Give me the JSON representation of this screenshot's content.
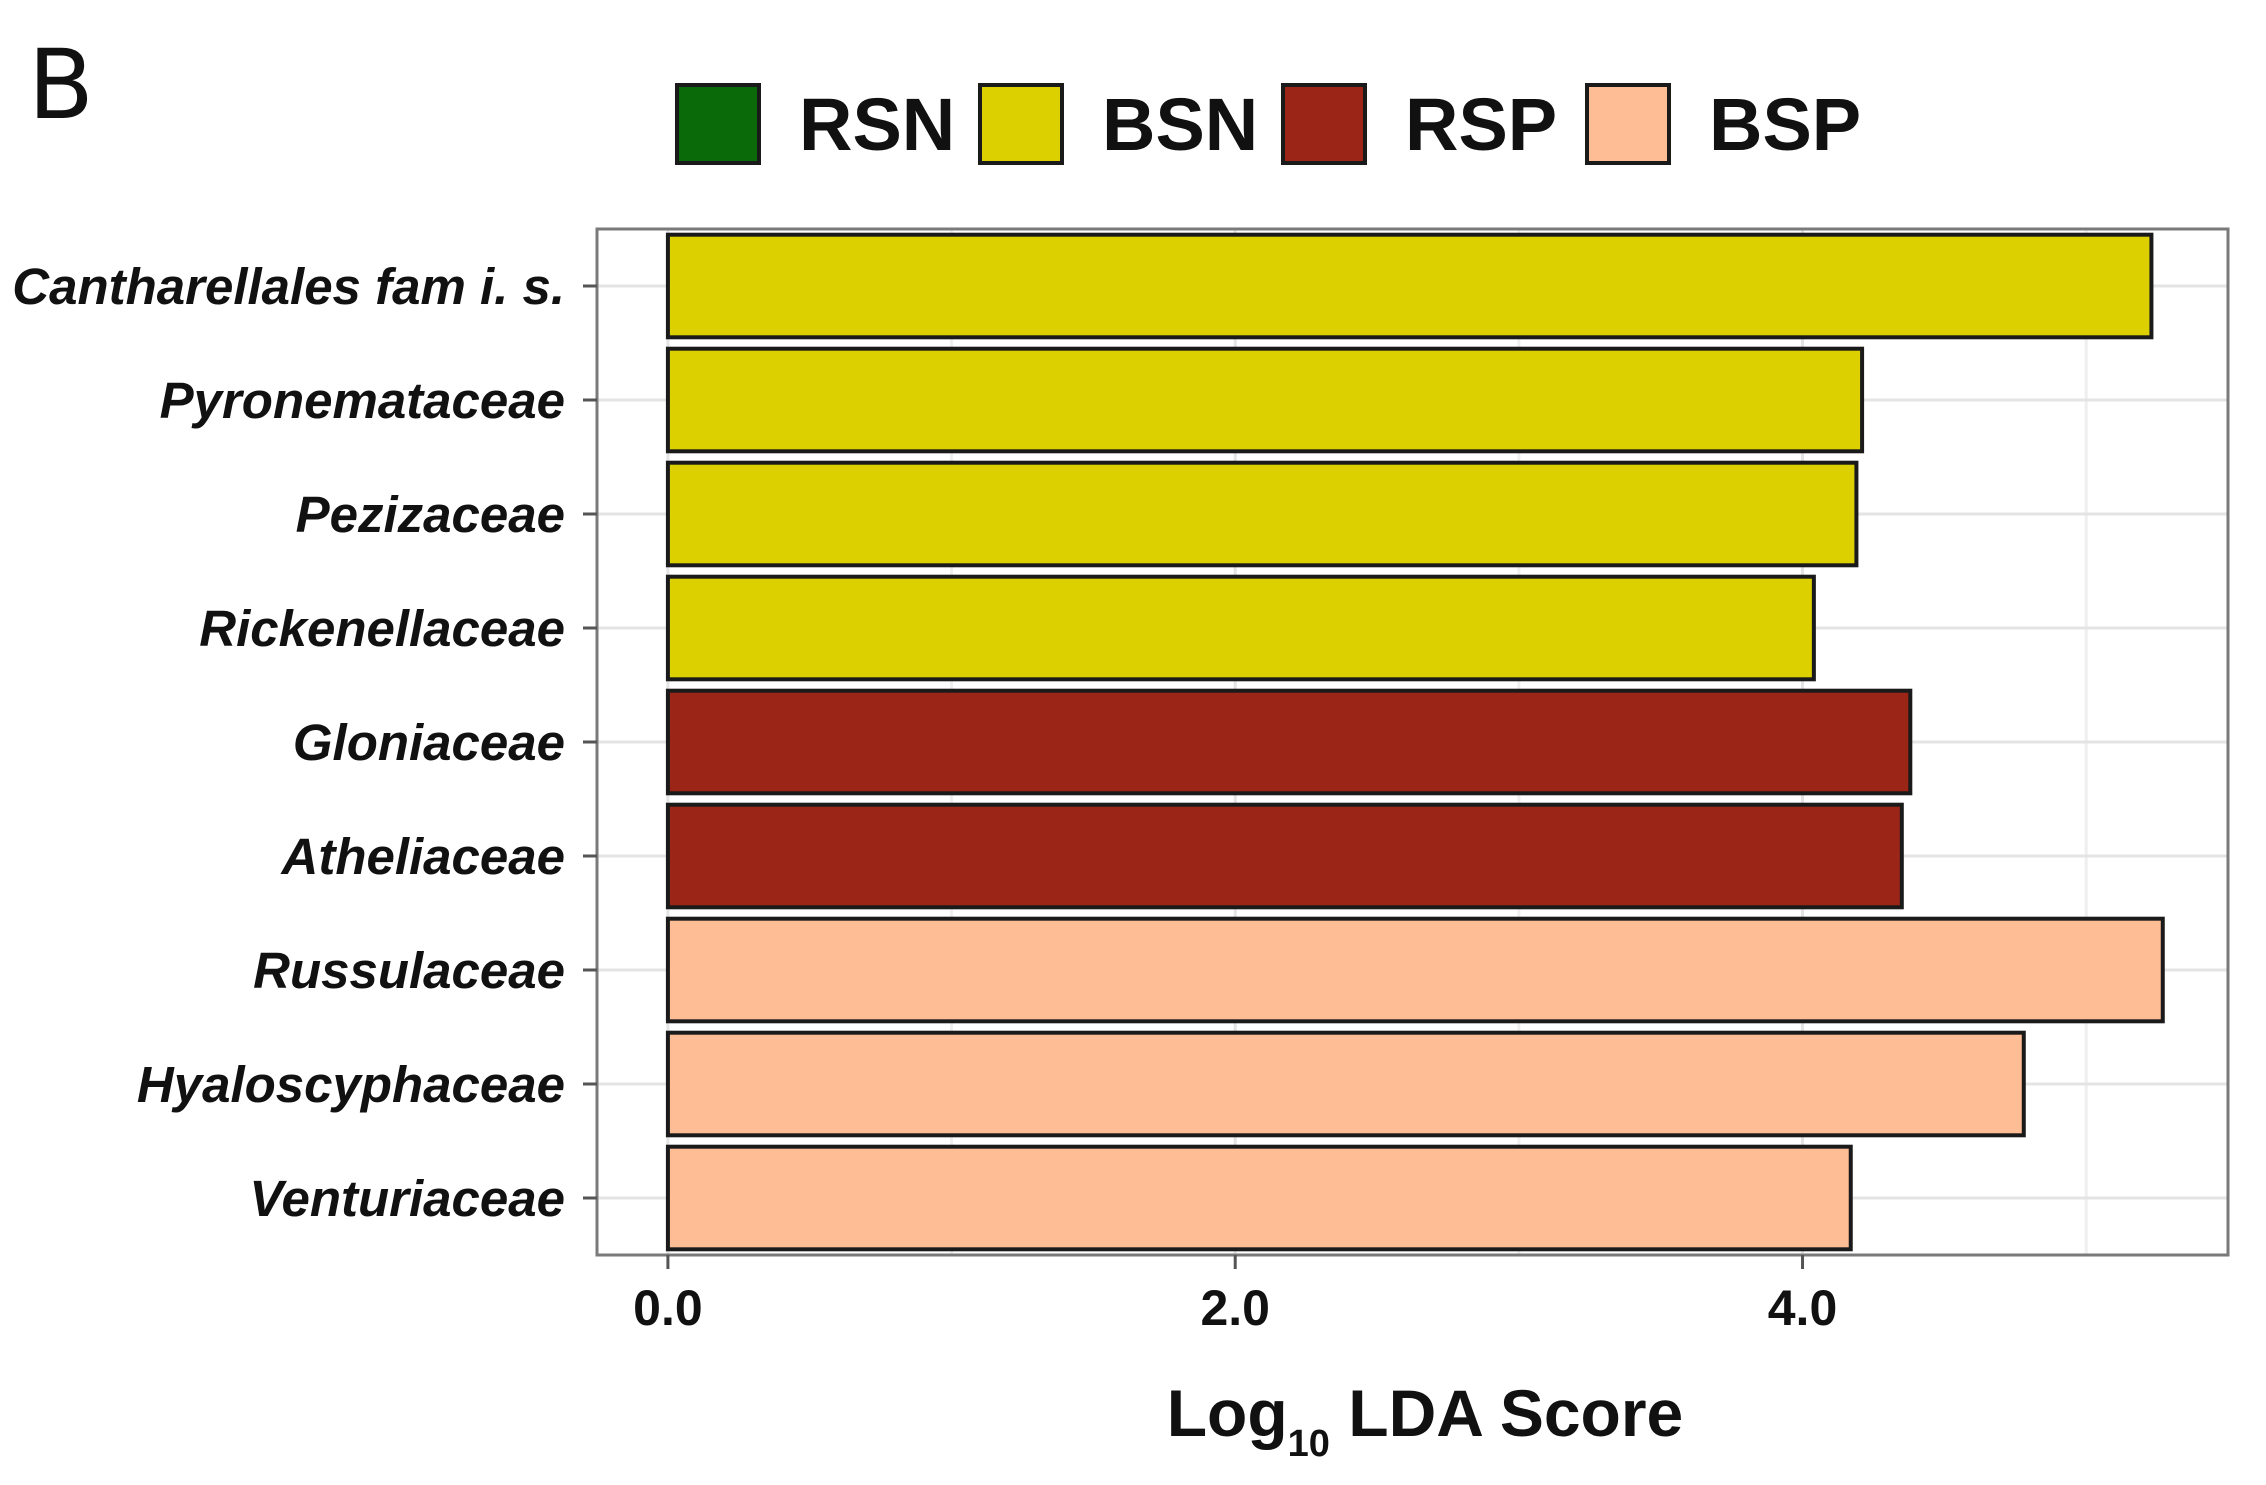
{
  "panel_label": "B",
  "chart_data": {
    "type": "bar",
    "orientation": "horizontal",
    "title": "",
    "xlabel": "Log10 LDA Score",
    "xlabel_main": "Log",
    "xlabel_subscript": "10",
    "xlabel_rest": " LDA Score",
    "ylabel": "",
    "xlim": [
      -0.25,
      5.5
    ],
    "xticks": [
      0.0,
      2.0,
      4.0
    ],
    "xtick_labels": [
      "0.0",
      "2.0",
      "4.0"
    ],
    "grid": true,
    "legend_position": "top",
    "legend": [
      {
        "name": "RSN",
        "color": "#0a6a0a"
      },
      {
        "name": "BSN",
        "color": "#dcd000"
      },
      {
        "name": "RSP",
        "color": "#9b2617"
      },
      {
        "name": "BSP",
        "color": "#ffbd96"
      }
    ],
    "categories": [
      "Cantharellales fam i. s.",
      "Pyronemataceae",
      "Pezizaceae",
      "Rickenellaceae",
      "Gloniaceae",
      "Atheliaceae",
      "Russulaceae",
      "Hyaloscyphaceae",
      "Venturiaceae"
    ],
    "values": [
      5.23,
      4.21,
      4.19,
      4.04,
      4.38,
      4.35,
      5.27,
      4.78,
      4.17
    ],
    "groups": [
      "BSN",
      "BSN",
      "BSN",
      "BSN",
      "RSP",
      "RSP",
      "BSP",
      "BSP",
      "BSP"
    ]
  }
}
